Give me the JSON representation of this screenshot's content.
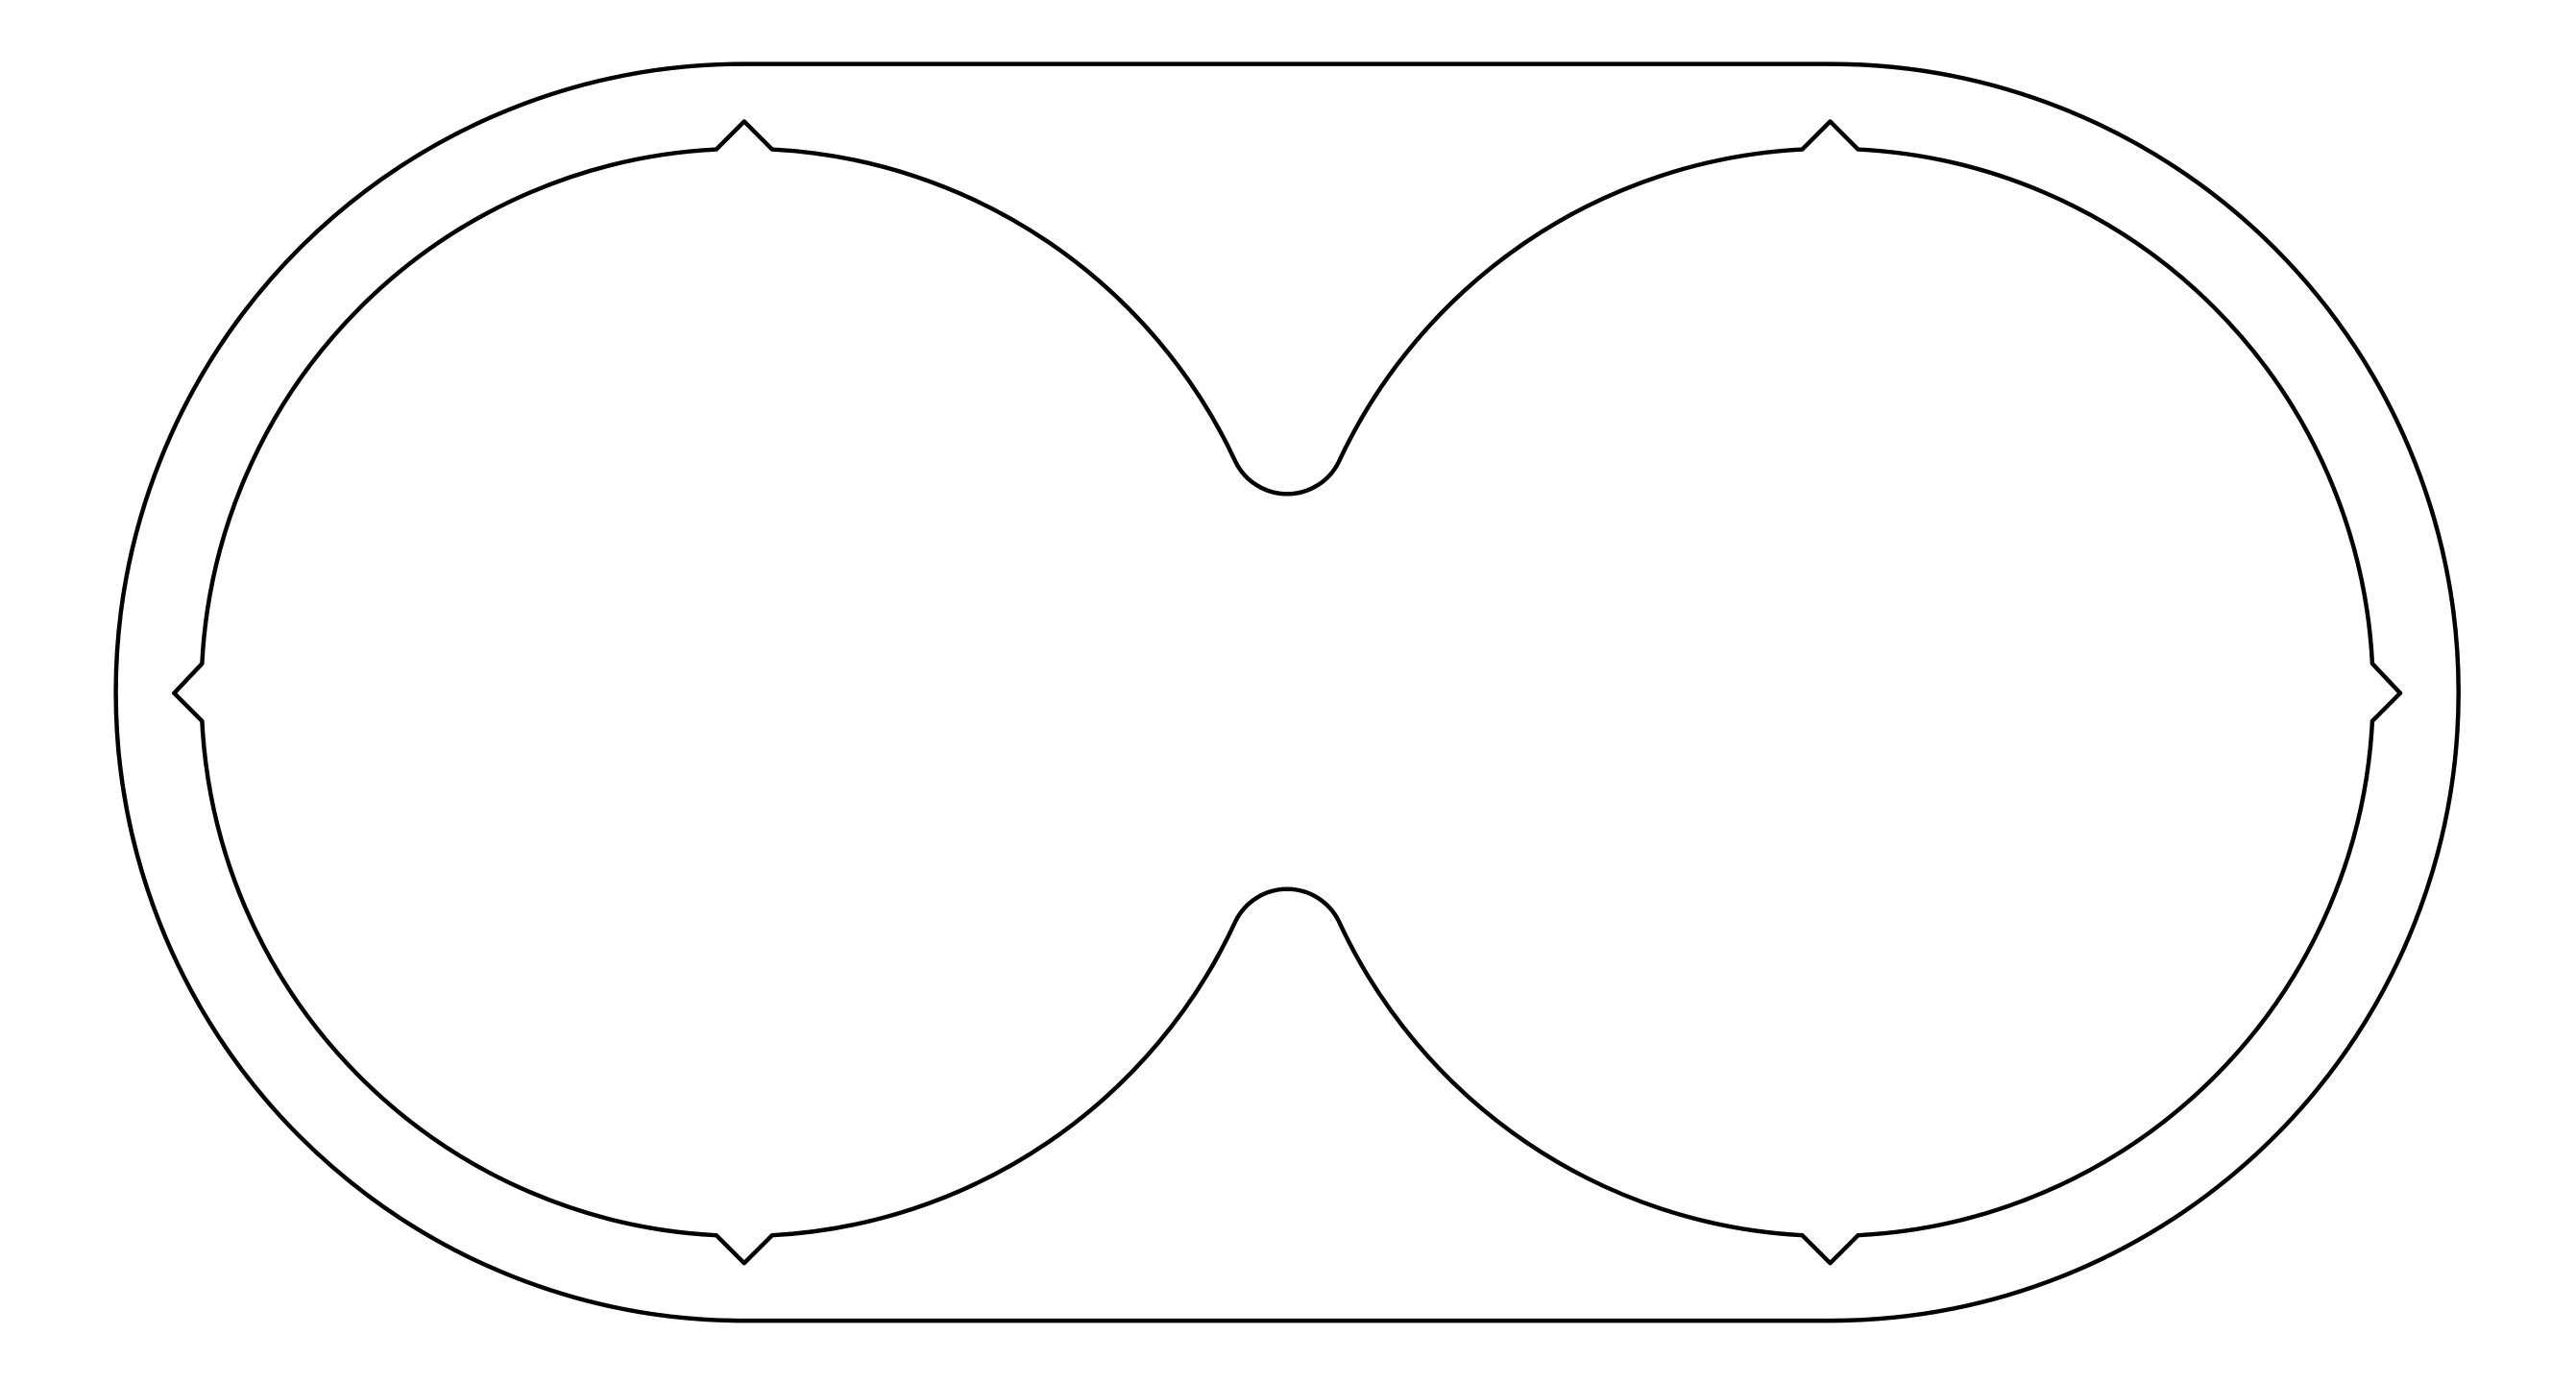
{
  "drawing": {
    "style": "line-art outline",
    "background_color": "#ffffff",
    "stroke_color": "#000000",
    "parts": [
      {
        "name": "outer-stadium-outline"
      },
      {
        "name": "double-lobe-cutout"
      }
    ]
  }
}
